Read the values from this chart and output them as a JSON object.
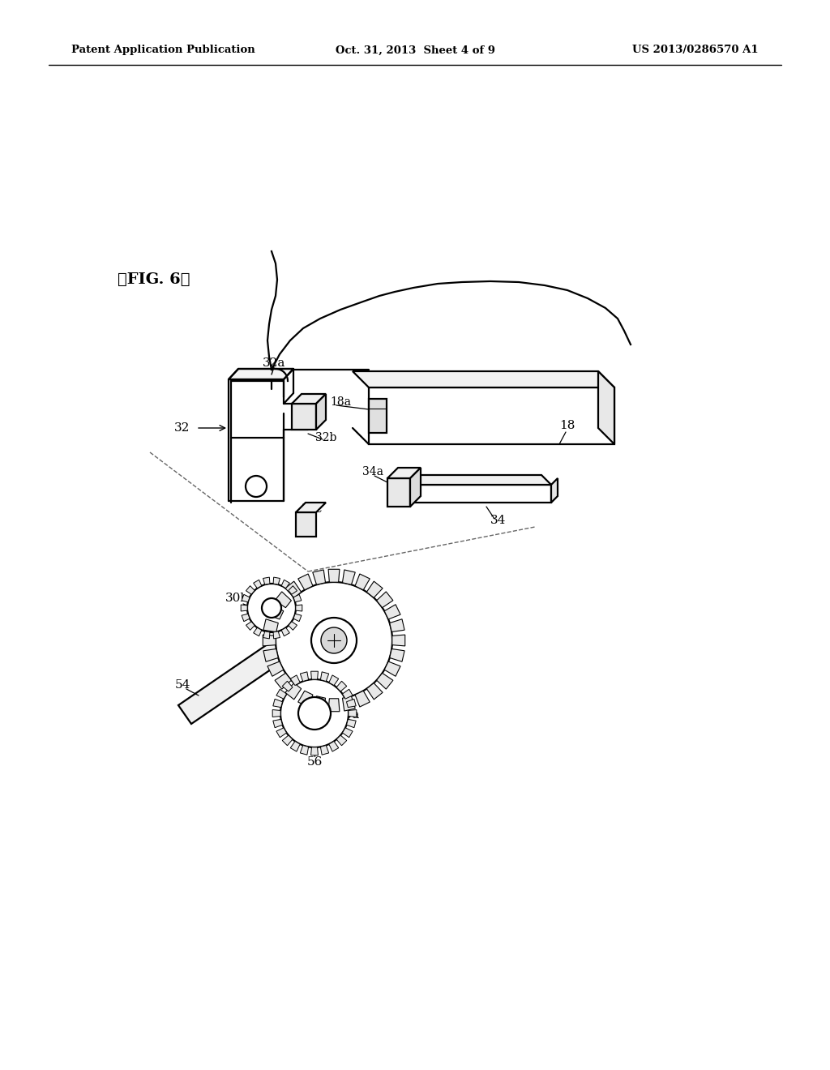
{
  "background_color": "#ffffff",
  "header_left": "Patent Application Publication",
  "header_center": "Oct. 31, 2013  Sheet 4 of 9",
  "header_right": "US 2013/0286570 A1",
  "fig_label": "【FIG. 6】",
  "lc": "black",
  "lw": 1.6
}
